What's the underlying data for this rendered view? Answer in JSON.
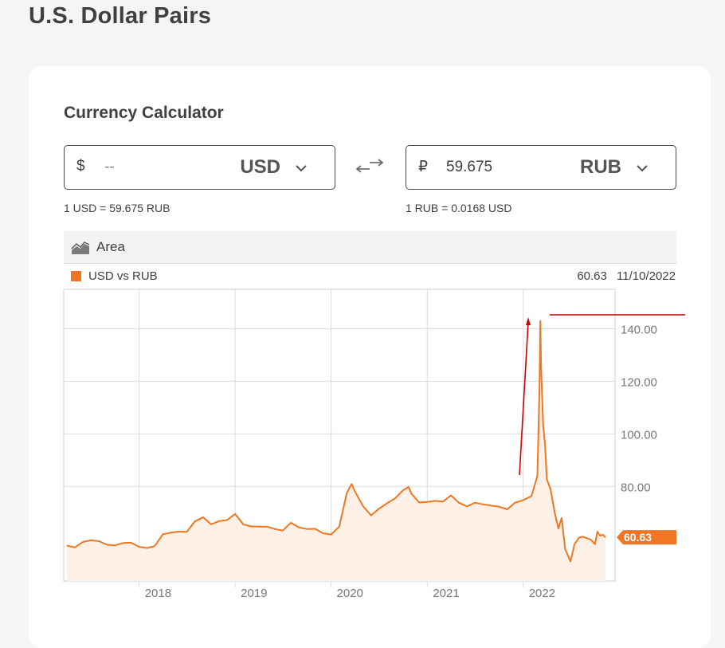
{
  "page": {
    "title": "U.S. Dollar Pairs"
  },
  "calculator": {
    "title": "Currency Calculator",
    "from": {
      "symbol": "$",
      "amount": "--",
      "currency": "USD",
      "rate_text": "1 USD = 59.675 RUB"
    },
    "to": {
      "symbol": "₽",
      "amount": "59.675",
      "currency": "RUB",
      "rate_text": "1 RUB = 0.0168 USD"
    },
    "icons": {
      "swap": "swap-arrows-icon",
      "dropdown": "chevron-down-icon"
    }
  },
  "chart_toolbar": {
    "chart_type_label": "Area",
    "icon": "area-chart-icon"
  },
  "chart_header": {
    "series_name": "USD vs RUB",
    "last_value": "60.63",
    "last_date": "11/10/2022",
    "series_color": "#ef7622"
  },
  "chart_data": {
    "type": "area",
    "series": [
      {
        "name": "USD vs RUB",
        "color": "#ef7622",
        "points": [
          [
            "2017-04-01",
            57.5
          ],
          [
            "2017-05-01",
            56.8
          ],
          [
            "2017-06-01",
            58.9
          ],
          [
            "2017-07-01",
            59.5
          ],
          [
            "2017-08-01",
            59.2
          ],
          [
            "2017-09-01",
            57.8
          ],
          [
            "2017-10-01",
            57.6
          ],
          [
            "2017-11-01",
            58.5
          ],
          [
            "2017-12-01",
            58.6
          ],
          [
            "2018-01-01",
            57.0
          ],
          [
            "2018-02-01",
            56.6
          ],
          [
            "2018-03-01",
            57.3
          ],
          [
            "2018-04-01",
            61.8
          ],
          [
            "2018-05-01",
            62.4
          ],
          [
            "2018-06-01",
            62.8
          ],
          [
            "2018-07-01",
            62.7
          ],
          [
            "2018-08-01",
            66.7
          ],
          [
            "2018-09-01",
            68.3
          ],
          [
            "2018-10-01",
            65.6
          ],
          [
            "2018-11-01",
            66.8
          ],
          [
            "2018-12-01",
            67.2
          ],
          [
            "2019-01-01",
            69.5
          ],
          [
            "2019-02-01",
            65.6
          ],
          [
            "2019-03-01",
            64.8
          ],
          [
            "2019-04-01",
            64.7
          ],
          [
            "2019-05-01",
            64.7
          ],
          [
            "2019-06-01",
            63.8
          ],
          [
            "2019-07-01",
            63.2
          ],
          [
            "2019-08-01",
            66.2
          ],
          [
            "2019-09-01",
            64.4
          ],
          [
            "2019-10-01",
            63.8
          ],
          [
            "2019-11-01",
            63.9
          ],
          [
            "2019-12-01",
            62.2
          ],
          [
            "2020-01-01",
            61.7
          ],
          [
            "2020-02-01",
            64.7
          ],
          [
            "2020-03-01",
            77.5
          ],
          [
            "2020-03-19",
            80.9
          ],
          [
            "2020-04-01",
            78.0
          ],
          [
            "2020-05-01",
            72.6
          ],
          [
            "2020-06-01",
            69.0
          ],
          [
            "2020-07-01",
            71.5
          ],
          [
            "2020-08-01",
            73.6
          ],
          [
            "2020-09-01",
            75.5
          ],
          [
            "2020-10-01",
            78.5
          ],
          [
            "2020-10-22",
            79.8
          ],
          [
            "2020-11-01",
            77.3
          ],
          [
            "2020-12-01",
            73.9
          ],
          [
            "2021-01-01",
            74.1
          ],
          [
            "2021-02-01",
            74.5
          ],
          [
            "2021-03-01",
            74.2
          ],
          [
            "2021-04-01",
            76.6
          ],
          [
            "2021-05-01",
            73.8
          ],
          [
            "2021-06-01",
            72.4
          ],
          [
            "2021-07-01",
            73.8
          ],
          [
            "2021-08-01",
            73.2
          ],
          [
            "2021-09-01",
            72.7
          ],
          [
            "2021-10-01",
            72.3
          ],
          [
            "2021-11-01",
            71.3
          ],
          [
            "2021-12-01",
            73.8
          ],
          [
            "2022-01-01",
            74.8
          ],
          [
            "2022-02-01",
            76.3
          ],
          [
            "2022-02-24",
            84.0
          ],
          [
            "2022-03-04",
            118.0
          ],
          [
            "2022-03-07",
            143.0
          ],
          [
            "2022-03-10",
            125.0
          ],
          [
            "2022-03-18",
            103.0
          ],
          [
            "2022-03-25",
            96.0
          ],
          [
            "2022-04-01",
            82.7
          ],
          [
            "2022-04-15",
            79.0
          ],
          [
            "2022-05-01",
            70.0
          ],
          [
            "2022-05-15",
            64.0
          ],
          [
            "2022-05-27",
            68.0
          ],
          [
            "2022-06-10",
            56.0
          ],
          [
            "2022-06-30",
            51.5
          ],
          [
            "2022-07-15",
            58.0
          ],
          [
            "2022-08-01",
            60.5
          ],
          [
            "2022-08-15",
            60.9
          ],
          [
            "2022-09-01",
            60.3
          ],
          [
            "2022-09-15",
            59.8
          ],
          [
            "2022-10-01",
            58.0
          ],
          [
            "2022-10-10",
            62.8
          ],
          [
            "2022-10-20",
            61.3
          ],
          [
            "2022-11-01",
            61.6
          ],
          [
            "2022-11-10",
            60.63
          ]
        ]
      }
    ],
    "x_ticks": [
      "2018",
      "2019",
      "2020",
      "2021",
      "2022"
    ],
    "y_ticks": [
      "80.00",
      "100.00",
      "120.00",
      "140.00"
    ],
    "ylim": [
      44,
      155
    ],
    "current_value_label": "60.63",
    "grid": true
  }
}
